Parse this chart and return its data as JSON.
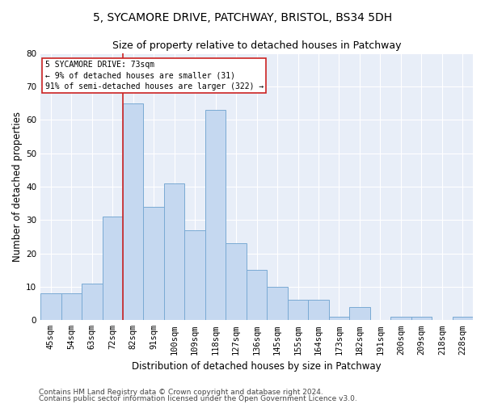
{
  "title1": "5, SYCAMORE DRIVE, PATCHWAY, BRISTOL, BS34 5DH",
  "title2": "Size of property relative to detached houses in Patchway",
  "xlabel": "Distribution of detached houses by size in Patchway",
  "ylabel": "Number of detached properties",
  "categories": [
    "45sqm",
    "54sqm",
    "63sqm",
    "72sqm",
    "82sqm",
    "91sqm",
    "100sqm",
    "109sqm",
    "118sqm",
    "127sqm",
    "136sqm",
    "145sqm",
    "155sqm",
    "164sqm",
    "173sqm",
    "182sqm",
    "191sqm",
    "200sqm",
    "209sqm",
    "218sqm",
    "228sqm"
  ],
  "values": [
    8,
    8,
    11,
    31,
    65,
    34,
    41,
    27,
    63,
    23,
    15,
    10,
    6,
    6,
    1,
    4,
    0,
    1,
    1,
    0,
    1
  ],
  "bar_color": "#c5d8f0",
  "bar_edge_color": "#7aaad4",
  "highlight_color": "#cc2222",
  "annotation_line1": "5 SYCAMORE DRIVE: 73sqm",
  "annotation_line2": "← 9% of detached houses are smaller (31)",
  "annotation_line3": "91% of semi-detached houses are larger (322) →",
  "annotation_box_color": "#ffffff",
  "annotation_border_color": "#cc2222",
  "ylim": [
    0,
    80
  ],
  "yticks": [
    0,
    10,
    20,
    30,
    40,
    50,
    60,
    70,
    80
  ],
  "footer1": "Contains HM Land Registry data © Crown copyright and database right 2024.",
  "footer2": "Contains public sector information licensed under the Open Government Licence v3.0.",
  "bg_color": "#e8eef8",
  "title1_fontsize": 10,
  "title2_fontsize": 9,
  "xlabel_fontsize": 8.5,
  "ylabel_fontsize": 8.5,
  "tick_fontsize": 7.5,
  "footer_fontsize": 6.5
}
